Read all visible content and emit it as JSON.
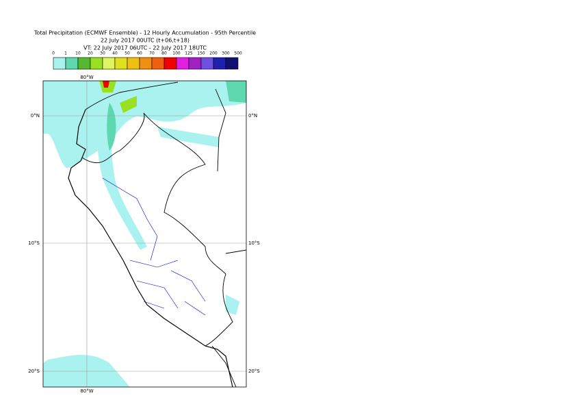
{
  "header": {
    "title": [
      "Total Precipitation (ECMWF Ensemble) - 12 Hourly Accumulation - 95th Percentile",
      "22 July 2017 00UTC (t+06,t+18)",
      "VT: 22 July 2017 06UTC - 22 July 2017 18UTC"
    ]
  },
  "legend": {
    "labels": [
      "0",
      "1",
      "10",
      "20",
      "30",
      "40",
      "50",
      "60",
      "70",
      "80",
      "100",
      "125",
      "150",
      "200",
      "300",
      "500"
    ],
    "colors": [
      "#ffffff",
      "#aaf2ef",
      "#5fd8b0",
      "#55b830",
      "#98e020",
      "#ddf560",
      "#e0e020",
      "#f0c010",
      "#f09010",
      "#f06010",
      "#f00000",
      "#e020e0",
      "#a020c0",
      "#7050e0",
      "#2020b0",
      "#101070",
      "#080840"
    ]
  },
  "map": {
    "lon_labels": [
      "80°W"
    ],
    "lat_labels": [
      "0°N",
      "10°S",
      "20°S"
    ]
  }
}
